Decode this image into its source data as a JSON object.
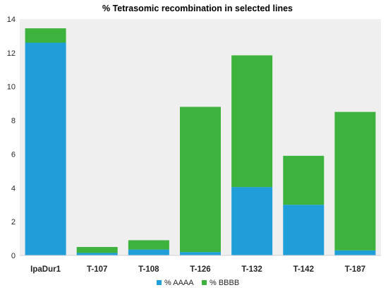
{
  "chart_data": {
    "type": "bar",
    "stacked": true,
    "title": "% Tetrasomic recombination in selected lines",
    "xlabel": "",
    "ylabel": "",
    "categories": [
      "IpaDur1",
      "T-107",
      "T-108",
      "T-126",
      "T-132",
      "T-142",
      "T-187"
    ],
    "series": [
      {
        "name": "% AAAA",
        "color": "#1f9ed9",
        "values": [
          12.6,
          0.15,
          0.35,
          0.2,
          4.05,
          3.0,
          0.3
        ]
      },
      {
        "name": "% BBBB",
        "color": "#3db23d",
        "values": [
          0.85,
          0.35,
          0.55,
          8.6,
          7.8,
          2.9,
          8.2
        ]
      }
    ],
    "ylim": [
      0,
      14
    ],
    "yticks": [
      0,
      2,
      4,
      6,
      8,
      10,
      12,
      14
    ],
    "grid": false,
    "plot_background": "#efefef",
    "legend_position": "bottom-center"
  }
}
